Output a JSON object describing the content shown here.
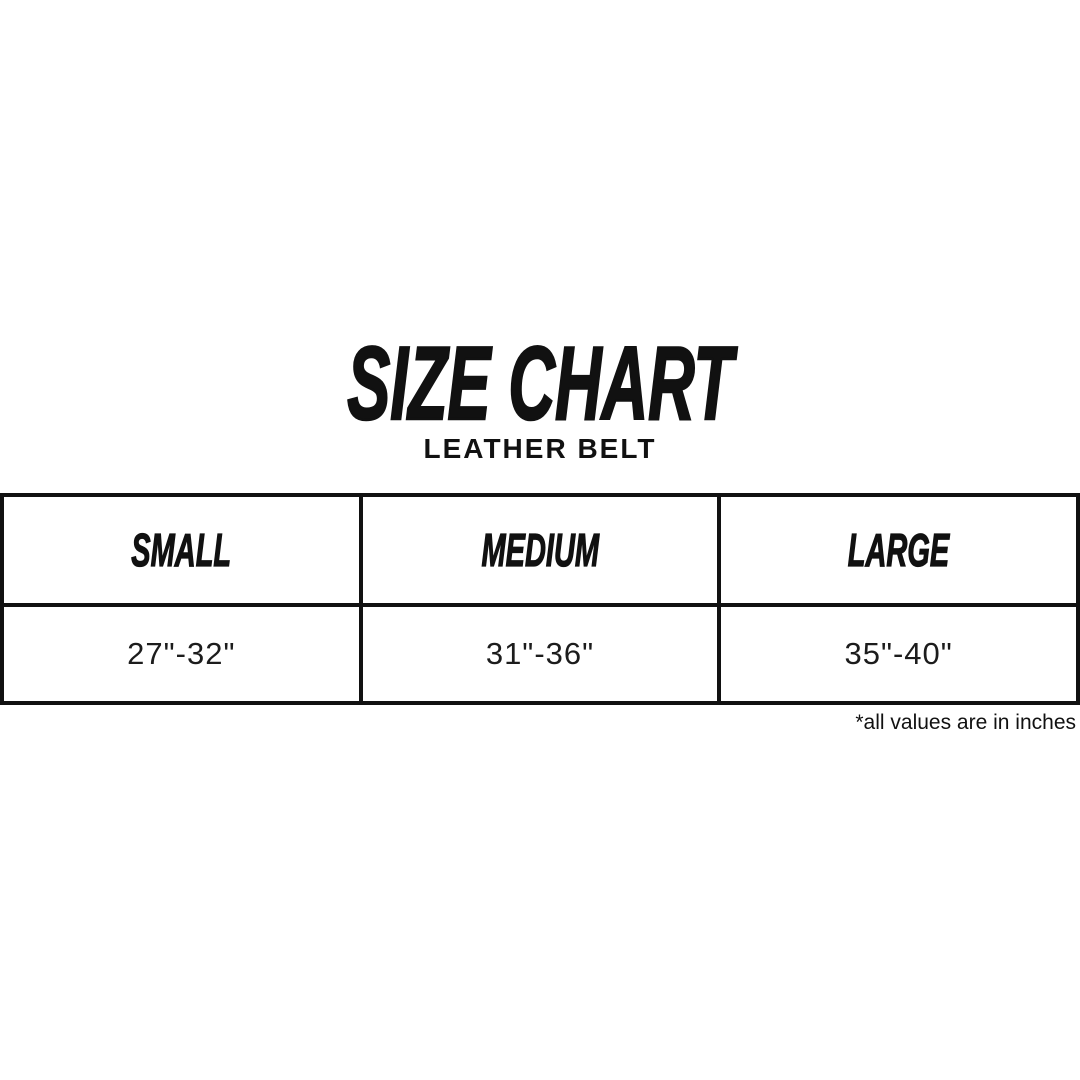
{
  "page": {
    "background": "#ffffff",
    "text_color": "#111111"
  },
  "header": {
    "title": "SIZE CHART",
    "subtitle": "LEATHER BELT"
  },
  "table": {
    "headers": [
      "SMALL",
      "MEDIUM",
      "LARGE"
    ],
    "rows": [
      [
        "27\"-32\"",
        "31\"-36\"",
        "35\"-40\""
      ]
    ]
  },
  "footnote": "*all values are in inches",
  "chart_data": {
    "type": "table",
    "title": "SIZE CHART",
    "subtitle": "LEATHER BELT",
    "columns": [
      "SMALL",
      "MEDIUM",
      "LARGE"
    ],
    "rows": [
      [
        "27\"-32\"",
        "31\"-36\"",
        "35\"-40\""
      ]
    ],
    "units": "inches",
    "footnote": "*all values are in inches",
    "layout": {
      "columns_equal_width": true,
      "table_full_width": true,
      "footnote_align": "right"
    }
  }
}
